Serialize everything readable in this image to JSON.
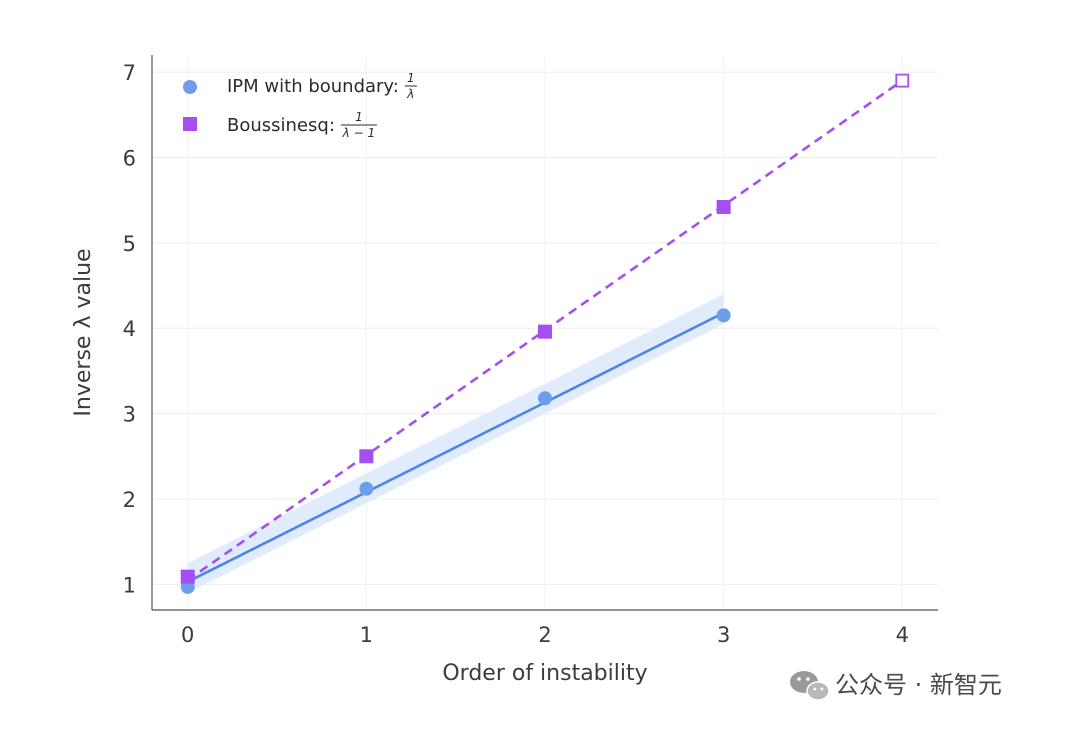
{
  "chart_data": {
    "type": "line",
    "xlabel": "Order of instability",
    "ylabel": "Inverse λ value",
    "xlim": [
      -0.2,
      4.2
    ],
    "ylim": [
      0.7,
      7.2
    ],
    "xticks": [
      0,
      1,
      2,
      3,
      4
    ],
    "yticks": [
      1,
      2,
      3,
      4,
      5,
      6,
      7
    ],
    "grid": true,
    "legend_position": "top-left",
    "series": [
      {
        "name": "IPM with boundary:",
        "name_formula": {
          "numerator": "1",
          "denominator": "λ"
        },
        "marker": "circle",
        "color": "#6d9eeb",
        "line_color": "#4a86e8",
        "line_style": "solid",
        "points": [
          {
            "x": 0,
            "y": 0.97
          },
          {
            "x": 1,
            "y": 2.12
          },
          {
            "x": 2,
            "y": 3.18
          },
          {
            "x": 3,
            "y": 4.15
          }
        ],
        "fit": {
          "from": [
            0,
            1.03
          ],
          "to": [
            3,
            4.18
          ]
        },
        "confidence_band": {
          "upper_start": 1.25,
          "upper_end": 4.4,
          "lower_start": 0.9,
          "lower_end": 4.05
        }
      },
      {
        "name": "Boussinesq:",
        "name_formula": {
          "numerator": "1",
          "denominator": "λ − 1"
        },
        "marker": "square",
        "color": "#a64ff0",
        "line_color": "#a64ff0",
        "line_style": "dashed",
        "points": [
          {
            "x": 0,
            "y": 1.09
          },
          {
            "x": 1,
            "y": 2.5
          },
          {
            "x": 2,
            "y": 3.96
          },
          {
            "x": 3,
            "y": 5.42
          }
        ],
        "predicted_point": {
          "x": 4,
          "y": 6.9
        },
        "fit": {
          "from": [
            0,
            1.05
          ],
          "to": [
            4,
            6.9
          ]
        }
      }
    ]
  },
  "watermark": {
    "text": "公众号 · 新智元",
    "icon": "wechat-icon"
  }
}
